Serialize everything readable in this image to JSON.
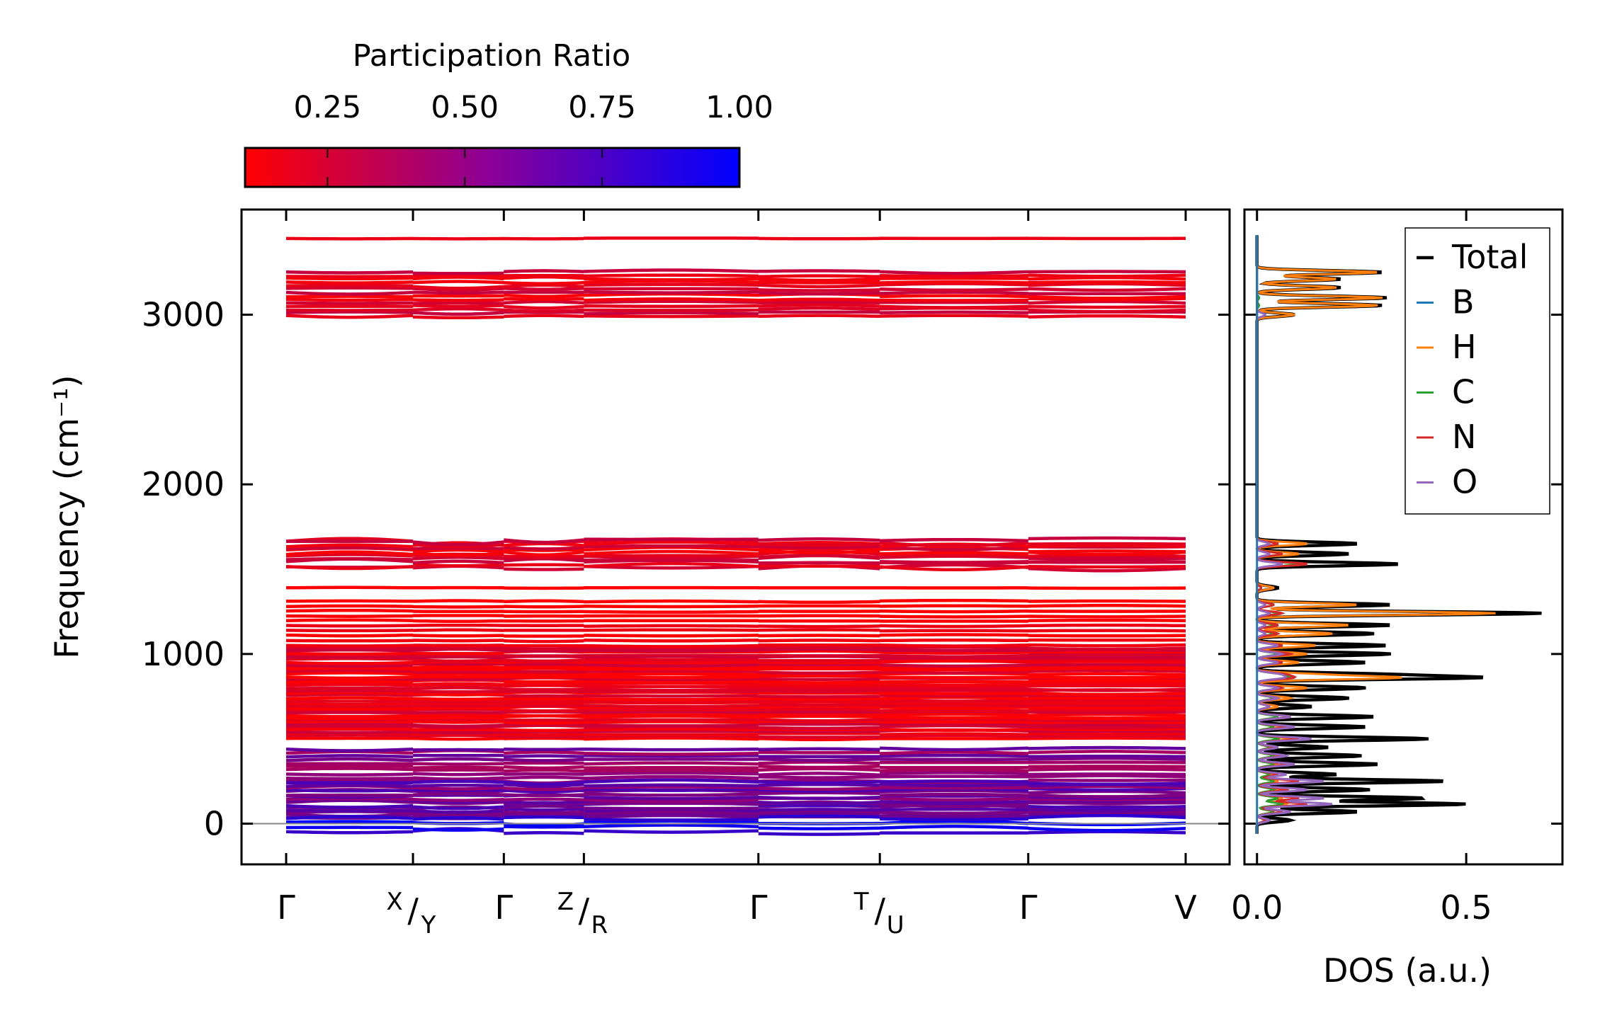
{
  "colors": {
    "low_pr": "#ff0000",
    "high_pr": "#0000ff",
    "total": "#000000",
    "B": "#1f77b4",
    "H": "#ff7f0e",
    "C": "#2ca02c",
    "N": "#d62728",
    "O": "#9467bd",
    "zero_line": "#888888"
  },
  "chart_data": [
    {
      "id": "band_structure",
      "type": "line",
      "ylabel": "Frequency (cm⁻¹)",
      "ylim": [
        -240,
        3620
      ],
      "yticks": [
        0,
        1000,
        2000,
        3000
      ],
      "ytick_labels": [
        "0",
        "1000",
        "2000",
        "3000"
      ],
      "path_ticks": [
        {
          "main": "Γ",
          "sup": "",
          "sub": "",
          "pos": 0.0
        },
        {
          "main": "/",
          "sup": "X",
          "sub": "Y",
          "pos": 0.141
        },
        {
          "main": "Γ",
          "sup": "",
          "sub": "",
          "pos": 0.242
        },
        {
          "main": "/",
          "sup": "Z",
          "sub": "R",
          "pos": 0.331
        },
        {
          "main": "Γ",
          "sup": "",
          "sub": "",
          "pos": 0.525
        },
        {
          "main": "/",
          "sup": "T",
          "sub": "U",
          "pos": 0.66
        },
        {
          "main": "Γ",
          "sup": "",
          "sub": "",
          "pos": 0.825
        },
        {
          "main": "V",
          "sup": "",
          "sub": "",
          "pos": 1.0
        }
      ],
      "band_groups": [
        {
          "from": 2990,
          "to": 3250,
          "count": 14,
          "pr": 0.22,
          "spread": 20
        },
        {
          "from": 3450,
          "to": 3450,
          "count": 1,
          "pr": 0.05,
          "spread": 4
        },
        {
          "from": 1510,
          "to": 1670,
          "count": 12,
          "pr": 0.25,
          "spread": 35
        },
        {
          "from": 1390,
          "to": 1390,
          "count": 1,
          "pr": 0.05,
          "spread": 4
        },
        {
          "from": 1080,
          "to": 1310,
          "count": 9,
          "pr": 0.08,
          "spread": 10
        },
        {
          "from": 500,
          "to": 1050,
          "count": 40,
          "pr": 0.18,
          "spread": 15
        },
        {
          "from": 250,
          "to": 440,
          "count": 10,
          "pr": 0.55,
          "spread": 20
        },
        {
          "from": 40,
          "to": 240,
          "count": 16,
          "pr": 0.62,
          "spread": 25
        },
        {
          "from": -50,
          "to": 30,
          "count": 4,
          "pr": 0.92,
          "spread": 30
        }
      ]
    },
    {
      "id": "dos",
      "type": "line",
      "xlabel": "DOS (a.u.)",
      "xlim": [
        -0.03,
        0.73
      ],
      "xticks": [
        0.0,
        0.5
      ],
      "xtick_labels": [
        "0.0",
        "0.5"
      ],
      "legend_location": "top-right",
      "series": [
        {
          "name": "Total",
          "key": "total",
          "scale": 1.0
        },
        {
          "name": "B",
          "key": "B",
          "scale": 0.0
        },
        {
          "name": "H",
          "key": "H",
          "scale": 1.0
        },
        {
          "name": "C",
          "key": "C",
          "scale": 1.0
        },
        {
          "name": "N",
          "key": "N",
          "scale": 1.0
        },
        {
          "name": "O",
          "key": "O",
          "scale": 1.0
        }
      ],
      "peaks": [
        {
          "f": 3000,
          "total": 0.09,
          "H": 0.09,
          "C": 0.0,
          "N": 0.0,
          "O": 0.02
        },
        {
          "f": 3055,
          "total": 0.3,
          "H": 0.29,
          "C": 0.005,
          "N": 0.0,
          "O": 0.0
        },
        {
          "f": 3100,
          "total": 0.31,
          "H": 0.3,
          "C": 0.005,
          "N": 0.0,
          "O": 0.0
        },
        {
          "f": 3160,
          "total": 0.2,
          "H": 0.19,
          "C": 0.0,
          "N": 0.0,
          "O": 0.0
        },
        {
          "f": 3210,
          "total": 0.2,
          "H": 0.19,
          "C": 0.0,
          "N": 0.0,
          "O": 0.0
        },
        {
          "f": 3250,
          "total": 0.3,
          "H": 0.29,
          "C": 0.0,
          "N": 0.0,
          "O": 0.0
        },
        {
          "f": 1530,
          "total": 0.34,
          "H": 0.12,
          "C": 0.1,
          "N": 0.12,
          "O": 0.06
        },
        {
          "f": 1590,
          "total": 0.22,
          "H": 0.1,
          "C": 0.06,
          "N": 0.06,
          "O": 0.03
        },
        {
          "f": 1650,
          "total": 0.24,
          "H": 0.12,
          "C": 0.05,
          "N": 0.05,
          "O": 0.03
        },
        {
          "f": 1390,
          "total": 0.05,
          "H": 0.04,
          "C": 0.01,
          "N": 0.01,
          "O": 0.0
        },
        {
          "f": 1290,
          "total": 0.32,
          "H": 0.24,
          "C": 0.04,
          "N": 0.04,
          "O": 0.02
        },
        {
          "f": 1240,
          "total": 0.68,
          "H": 0.57,
          "C": 0.05,
          "N": 0.06,
          "O": 0.03
        },
        {
          "f": 1170,
          "total": 0.32,
          "H": 0.22,
          "C": 0.04,
          "N": 0.05,
          "O": 0.02
        },
        {
          "f": 1120,
          "total": 0.28,
          "H": 0.18,
          "C": 0.04,
          "N": 0.05,
          "O": 0.02
        },
        {
          "f": 1050,
          "total": 0.31,
          "H": 0.14,
          "C": 0.05,
          "N": 0.06,
          "O": 0.05
        },
        {
          "f": 1000,
          "total": 0.32,
          "H": 0.12,
          "C": 0.05,
          "N": 0.08,
          "O": 0.06
        },
        {
          "f": 950,
          "total": 0.26,
          "H": 0.1,
          "C": 0.05,
          "N": 0.06,
          "O": 0.05
        },
        {
          "f": 880,
          "total": 0.27,
          "H": 0.12,
          "C": 0.05,
          "N": 0.06,
          "O": 0.05
        },
        {
          "f": 860,
          "total": 0.5,
          "H": 0.33,
          "C": 0.07,
          "N": 0.08,
          "O": 0.06
        },
        {
          "f": 800,
          "total": 0.26,
          "H": 0.12,
          "C": 0.05,
          "N": 0.06,
          "O": 0.05
        },
        {
          "f": 740,
          "total": 0.22,
          "H": 0.08,
          "C": 0.04,
          "N": 0.05,
          "O": 0.05
        },
        {
          "f": 690,
          "total": 0.13,
          "H": 0.05,
          "C": 0.03,
          "N": 0.03,
          "O": 0.03
        },
        {
          "f": 630,
          "total": 0.28,
          "H": 0.08,
          "C": 0.05,
          "N": 0.08,
          "O": 0.08
        },
        {
          "f": 570,
          "total": 0.26,
          "H": 0.06,
          "C": 0.04,
          "N": 0.07,
          "O": 0.09
        },
        {
          "f": 500,
          "total": 0.41,
          "H": 0.08,
          "C": 0.05,
          "N": 0.1,
          "O": 0.13
        },
        {
          "f": 450,
          "total": 0.17,
          "H": 0.04,
          "C": 0.03,
          "N": 0.04,
          "O": 0.05
        },
        {
          "f": 400,
          "total": 0.25,
          "H": 0.05,
          "C": 0.04,
          "N": 0.06,
          "O": 0.07
        },
        {
          "f": 350,
          "total": 0.29,
          "H": 0.05,
          "C": 0.04,
          "N": 0.07,
          "O": 0.09
        },
        {
          "f": 290,
          "total": 0.19,
          "H": 0.04,
          "C": 0.03,
          "N": 0.05,
          "O": 0.07
        },
        {
          "f": 250,
          "total": 0.45,
          "H": 0.05,
          "C": 0.04,
          "N": 0.1,
          "O": 0.16
        },
        {
          "f": 200,
          "total": 0.27,
          "H": 0.05,
          "C": 0.04,
          "N": 0.07,
          "O": 0.12
        },
        {
          "f": 150,
          "total": 0.4,
          "H": 0.06,
          "C": 0.05,
          "N": 0.1,
          "O": 0.16
        },
        {
          "f": 115,
          "total": 0.5,
          "H": 0.07,
          "C": 0.06,
          "N": 0.12,
          "O": 0.18
        },
        {
          "f": 70,
          "total": 0.24,
          "H": 0.04,
          "C": 0.04,
          "N": 0.06,
          "O": 0.08
        },
        {
          "f": 20,
          "total": 0.08,
          "H": 0.02,
          "C": 0.02,
          "N": 0.02,
          "O": 0.03
        }
      ]
    },
    {
      "id": "colorbar",
      "type": "heatmap",
      "title": "Participation Ratio",
      "range": [
        0.1,
        1.0
      ],
      "ticks": [
        0.25,
        0.5,
        0.75,
        1.0
      ],
      "tick_labels": [
        "0.25",
        "0.50",
        "0.75",
        "1.00"
      ]
    }
  ]
}
